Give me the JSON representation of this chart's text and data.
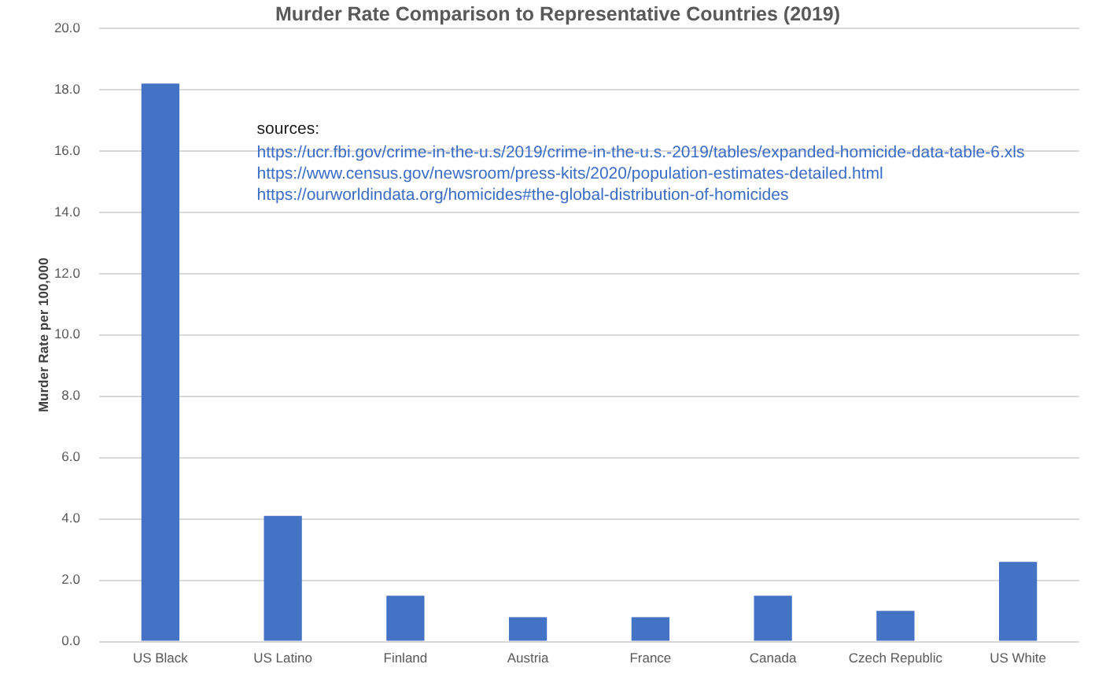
{
  "chart_data": {
    "type": "bar",
    "title": "Murder Rate Comparison to Representative Countries (2019)",
    "ylabel": "Murder Rate per 100,000",
    "categories": [
      "US Black",
      "US Latino",
      "Finland",
      "Austria",
      "France",
      "Canada",
      "Czech Republic",
      "US White"
    ],
    "values": [
      18.2,
      4.1,
      1.5,
      0.8,
      0.8,
      1.5,
      1.0,
      2.6
    ],
    "color": "#4472c4",
    "ylim": [
      0,
      20
    ],
    "yticks": [
      {
        "value": 0,
        "label": "0.0"
      },
      {
        "value": 2,
        "label": "2.0"
      },
      {
        "value": 4,
        "label": "4.0"
      },
      {
        "value": 6,
        "label": "6.0"
      },
      {
        "value": 8,
        "label": "8.0"
      },
      {
        "value": 10,
        "label": "10.0"
      },
      {
        "value": 12,
        "label": "12.0"
      },
      {
        "value": 14,
        "label": "14.0"
      },
      {
        "value": 16,
        "label": "16.0"
      },
      {
        "value": 18,
        "label": "18.0"
      },
      {
        "value": 20,
        "label": "20.0"
      }
    ],
    "grid": "y",
    "annotations": [
      "sources:",
      "https://ucr.fbi.gov/crime-in-the-u.s/2019/crime-in-the-u.s.-2019/tables/expanded-homicide-data-table-6.xls",
      "https://www.census.gov/newsroom/press-kits/2020/population-estimates-detailed.html",
      "https://ourworldindata.org/homicides#the-global-distribution-of-homicides"
    ]
  }
}
